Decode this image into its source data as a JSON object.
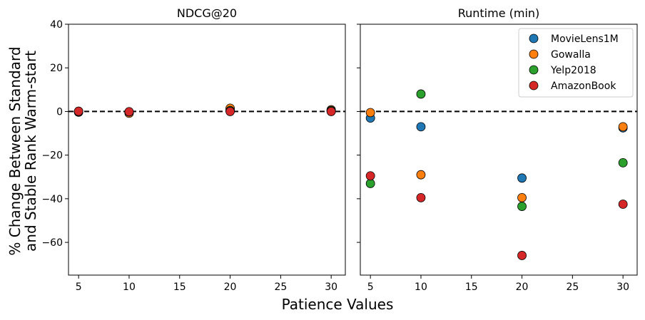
{
  "chart_data": [
    {
      "type": "scatter",
      "title": "NDCG@20",
      "xlabel": "Patience Values",
      "ylabel": "% Change Between Standard and Stable Rank Warm-start",
      "ylabel_lines": [
        "% Change Between Standard",
        "and Stable Rank Warm-start"
      ],
      "xlim": [
        4,
        31.4
      ],
      "ylim": [
        -75,
        40
      ],
      "xticks": [
        5,
        10,
        15,
        20,
        25,
        30
      ],
      "yticks": [
        40,
        20,
        0,
        -20,
        -40,
        -60
      ],
      "ytick_labels": [
        "40",
        "20",
        "0",
        "−20",
        "−40",
        "−60"
      ],
      "reference_line": 0,
      "series": [
        {
          "name": "MovieLens1M",
          "color": "#1f77b4",
          "x": [
            5,
            10,
            20,
            30
          ],
          "y": [
            -0.3,
            -0.5,
            0.8,
            0.2
          ]
        },
        {
          "name": "Gowalla",
          "color": "#ff7f0e",
          "x": [
            5,
            10,
            20,
            30
          ],
          "y": [
            -0.2,
            -0.8,
            1.5,
            0.8
          ]
        },
        {
          "name": "Yelp2018",
          "color": "#2ca02c",
          "x": [
            5,
            10,
            20,
            30
          ],
          "y": [
            0.1,
            -0.2,
            0.4,
            0.4
          ]
        },
        {
          "name": "AmazonBook",
          "color": "#d62728",
          "x": [
            5,
            10,
            20,
            30
          ],
          "y": [
            0.1,
            -0.1,
            0.0,
            0.0
          ]
        }
      ]
    },
    {
      "type": "scatter",
      "title": "Runtime (min)",
      "xlabel": "Patience Values",
      "xlim": [
        4,
        31.4
      ],
      "ylim": [
        -75,
        40
      ],
      "xticks": [
        5,
        10,
        15,
        20,
        25,
        30
      ],
      "reference_line": 0,
      "legend_position": "top-right",
      "series": [
        {
          "name": "MovieLens1M",
          "color": "#1f77b4",
          "x": [
            5,
            10,
            20,
            30
          ],
          "y": [
            -3,
            -7,
            -30.5,
            -7.5
          ]
        },
        {
          "name": "Gowalla",
          "color": "#ff7f0e",
          "x": [
            5,
            10,
            20,
            30
          ],
          "y": [
            -0.5,
            -29,
            -39.5,
            -7
          ]
        },
        {
          "name": "Yelp2018",
          "color": "#2ca02c",
          "x": [
            5,
            10,
            20,
            30
          ],
          "y": [
            -33,
            8,
            -43.5,
            -23.5
          ]
        },
        {
          "name": "AmazonBook",
          "color": "#d62728",
          "x": [
            5,
            10,
            20,
            30
          ],
          "y": [
            -29.5,
            -39.5,
            -66,
            -42.5
          ]
        }
      ]
    }
  ]
}
